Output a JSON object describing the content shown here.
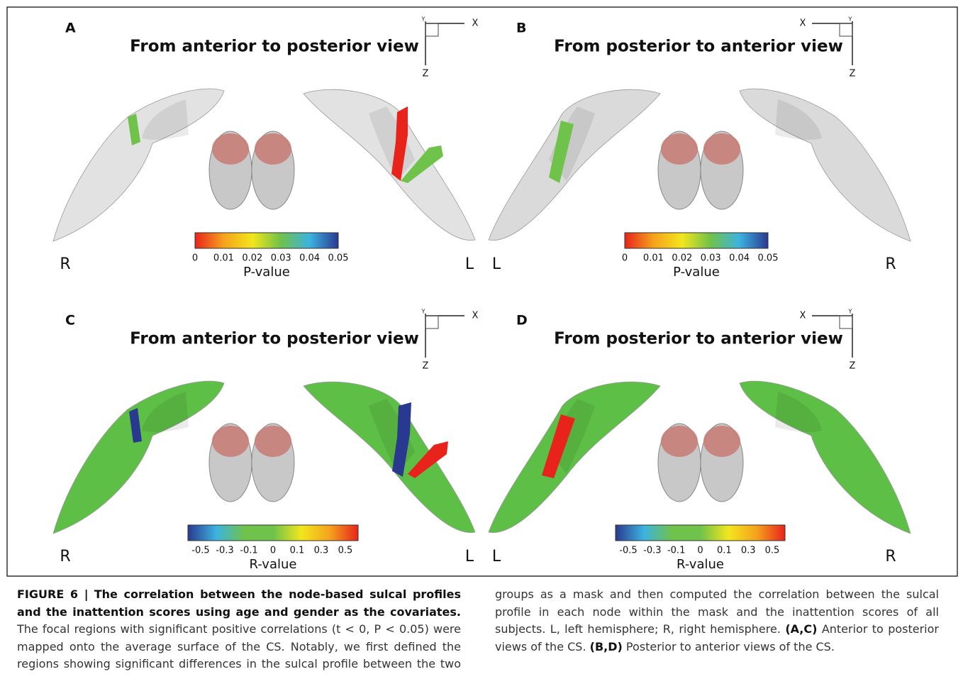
{
  "figure": {
    "panels": [
      {
        "letter": "A",
        "title": "From anterior to posterior view",
        "axis_x": "X",
        "axis_y": "Y",
        "axis_z": "Z",
        "side_left": "R",
        "side_right": "L",
        "surface_color": "#e2e2e2",
        "colorbar": {
          "label": "P-value",
          "ticks": [
            "0",
            "0.01",
            "0.02",
            "0.03",
            "0.04",
            "0.05"
          ],
          "colors": [
            "#e8231b",
            "#f5a21c",
            "#f2e61d",
            "#6fc24a",
            "#3cb3e0",
            "#2a3990"
          ]
        }
      },
      {
        "letter": "B",
        "title": "From posterior to anterior view",
        "axis_x": "X",
        "axis_y": "Y",
        "axis_z": "Z",
        "side_left": "L",
        "side_right": "R",
        "surface_color": "#dadada",
        "colorbar": {
          "label": "P-value",
          "ticks": [
            "0",
            "0.01",
            "0.02",
            "0.03",
            "0.04",
            "0.05"
          ],
          "colors": [
            "#e8231b",
            "#f5a21c",
            "#f2e61d",
            "#6fc24a",
            "#3cb3e0",
            "#2a3990"
          ]
        }
      },
      {
        "letter": "C",
        "title": "From anterior to posterior view",
        "axis_x": "X",
        "axis_y": "Y",
        "axis_z": "Z",
        "side_left": "R",
        "side_right": "L",
        "surface_color": "#5dbf45",
        "colorbar": {
          "label": "R-value",
          "ticks": [
            "-0.5",
            "-0.3",
            "-0.1",
            "0",
            "0.1",
            "0.3",
            "0.5"
          ],
          "colors": [
            "#2a3990",
            "#3cb3e0",
            "#6fc24a",
            "#6fc24a",
            "#f2e61d",
            "#f5a21c",
            "#e8231b"
          ]
        }
      },
      {
        "letter": "D",
        "title": "From posterior to anterior view",
        "axis_x": "X",
        "axis_y": "Y",
        "axis_z": "Z",
        "side_left": "L",
        "side_right": "R",
        "surface_color": "#5dbf45",
        "colorbar": {
          "label": "R-value",
          "ticks": [
            "-0.5",
            "-0.3",
            "-0.1",
            "0",
            "0.1",
            "0.3",
            "0.5"
          ],
          "colors": [
            "#2a3990",
            "#3cb3e0",
            "#6fc24a",
            "#6fc24a",
            "#f2e61d",
            "#f5a21c",
            "#e8231b"
          ]
        }
      }
    ],
    "caption": {
      "label": "FIGURE 6 |",
      "title": "The correlation between the node-based sulcal profiles and the inattention scores using age and gender as the covariates.",
      "body": "The focal regions with significant positive correlations (t < 0, P < 0.05) were mapped onto the average surface of the CS. Notably, we first defined the regions showing significant differences in the sulcal profile between the two groups as a mask and then computed the correlation between the sulcal profile in each node within the mask and the inattention scores of all subjects. L, left hemisphere; R, right hemisphere.",
      "ac_label": "(A,C)",
      "ac_text": "Anterior to posterior views of the CS.",
      "bd_label": "(B,D)",
      "bd_text": "Posterior to anterior views of the CS."
    }
  }
}
